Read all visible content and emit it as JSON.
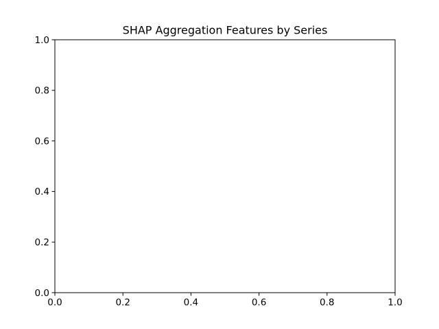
{
  "chart_data": {
    "type": "scatter",
    "title": "SHAP Aggregation Features by Series",
    "xlabel": "",
    "ylabel": "",
    "xlim": [
      0.0,
      1.0
    ],
    "ylim": [
      0.0,
      1.0
    ],
    "x_ticks": [
      0.0,
      0.2,
      0.4,
      0.6,
      0.8,
      1.0
    ],
    "y_ticks": [
      0.0,
      0.2,
      0.4,
      0.6,
      0.8,
      1.0
    ],
    "x_tick_labels": [
      "0.0",
      "0.2",
      "0.4",
      "0.6",
      "0.8",
      "1.0"
    ],
    "y_tick_labels": [
      "0.0",
      "0.2",
      "0.4",
      "0.6",
      "0.8",
      "1.0"
    ],
    "grid": false,
    "legend": "none",
    "series": []
  }
}
